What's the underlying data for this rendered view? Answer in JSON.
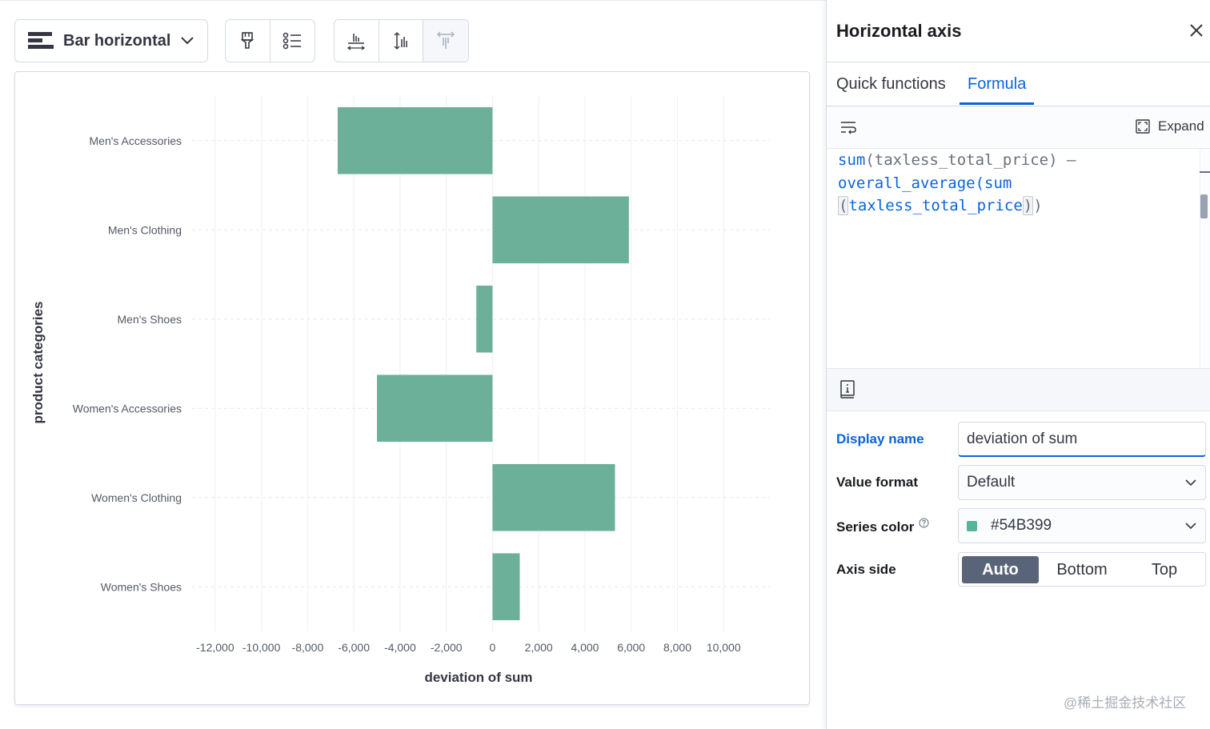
{
  "toolbar": {
    "chart_type_label": "Bar horizontal",
    "icons": [
      "bar-horizontal-icon",
      "paintbrush-icon",
      "legend-list-icon",
      "x-axis-icon",
      "left-axis-icon",
      "right-axis-icon"
    ]
  },
  "chart_data": {
    "type": "bar",
    "orientation": "horizontal",
    "categories": [
      "Men's Accessories",
      "Men's Clothing",
      "Men's Shoes",
      "Women's Accessories",
      "Women's Clothing",
      "Women's Shoes"
    ],
    "values": [
      -6700,
      5900,
      -700,
      -5000,
      5300,
      1180
    ],
    "xlabel": "deviation of sum",
    "ylabel": "product categories",
    "xlim": [
      -13000,
      12000
    ],
    "xticks": [
      -12000,
      -10000,
      -8000,
      -6000,
      -4000,
      -2000,
      0,
      2000,
      4000,
      6000,
      8000,
      10000
    ],
    "xtick_labels": [
      "-12,000",
      "-10,000",
      "-8,000",
      "-6,000",
      "-4,000",
      "-2,000",
      "0",
      "2,000",
      "4,000",
      "6,000",
      "8,000",
      "10,000"
    ],
    "color": "#6db09a",
    "grid": true
  },
  "flyout": {
    "title": "Horizontal axis",
    "tabs": [
      "Quick functions",
      "Formula"
    ],
    "active_tab": "Formula",
    "expand_label": "Expand",
    "formula": {
      "line1_fn": "sum",
      "line1_rest": "(taxless_total_price) –",
      "line2": "overall_average(sum",
      "line3_open": "(",
      "line3_field": "taxless_total_price",
      "line3_close1": ")",
      "line3_close2": ")"
    },
    "display_name_label": "Display name",
    "display_name_value": "deviation of sum",
    "value_format_label": "Value format",
    "value_format_value": "Default",
    "series_color_label": "Series color",
    "series_color_value": "#54B399",
    "axis_side_label": "Axis side",
    "axis_side_options": [
      "Auto",
      "Bottom",
      "Top"
    ],
    "axis_side_selected": "Auto"
  },
  "watermark": "@稀土掘金技术社区",
  "bottom_text": "·"
}
